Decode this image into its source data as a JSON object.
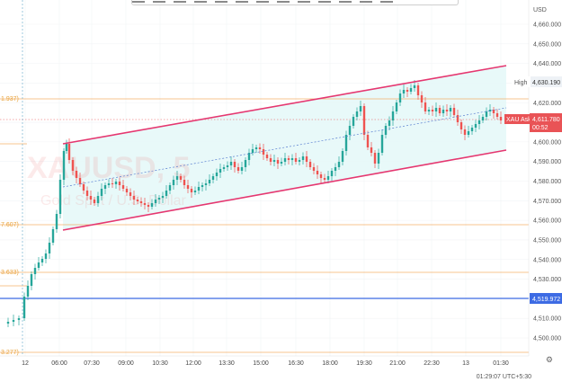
{
  "header": {
    "currency": "USD"
  },
  "price_axis": {
    "ticks": [
      "4,660.000",
      "4,650.000",
      "4,640.000",
      "4,630.000",
      "4,620.000",
      "4,610.000",
      "4,600.000",
      "4,590.000",
      "4,580.000",
      "4,570.000",
      "4,560.000",
      "4,550.000",
      "4,540.000",
      "4,530.000",
      "4,520.000",
      "4,510.000",
      "4,500.000"
    ],
    "high_label": "High",
    "high_value": "4,630.190",
    "ask_label": "XAU Ask",
    "ask_value": "4,611.780",
    "ask_countdown": "00:52",
    "blue_level_value": "4,519.972"
  },
  "left_labels": [
    "1.937)",
    "7.607)",
    "3.633)",
    "3.277)"
  ],
  "time_axis": {
    "ticks": [
      "12",
      "06:00",
      "07:30",
      "09:00",
      "10:30",
      "12:00",
      "13:30",
      "15:00",
      "16:30",
      "18:00",
      "19:30",
      "21:00",
      "22:30",
      "13",
      "01:30"
    ],
    "clock": "01:29:07 UTC+5:30"
  },
  "watermark": {
    "symbol": "XAUUSD, 5",
    "subtitle": "Gold Spot / U.S. Dollar"
  },
  "colors": {
    "up": "#26a69a",
    "down": "#ef5350",
    "channel": "#e53770",
    "fill": "#e6f8f8",
    "hline": "#f5b06a",
    "blue": "#3d6be4",
    "ask": "#e95356",
    "dark": "#4b4b4b"
  },
  "icons": {
    "settings": "gear-icon"
  }
}
